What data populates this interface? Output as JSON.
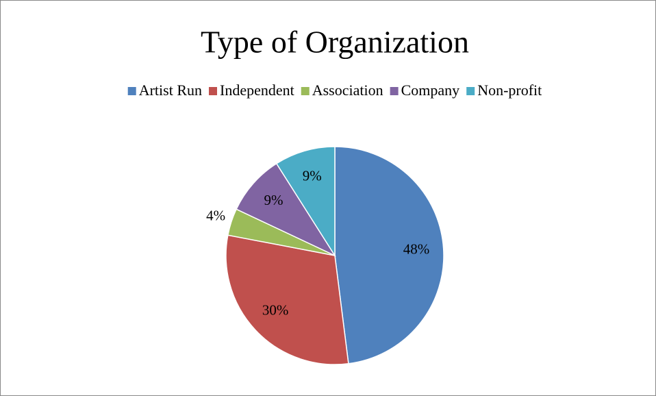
{
  "chart_data": {
    "type": "pie",
    "title": "Type of Organization",
    "categories": [
      "Artist Run",
      "Independent",
      "Association",
      "Company",
      "Non-profit"
    ],
    "values": [
      48,
      30,
      4,
      9,
      9
    ],
    "value_labels": [
      "48%",
      "30%",
      "4%",
      "9%",
      "9%"
    ],
    "colors": [
      "#4f81bd",
      "#c0504d",
      "#9bbb59",
      "#8064a2",
      "#4bacc6"
    ],
    "legend": "top"
  }
}
